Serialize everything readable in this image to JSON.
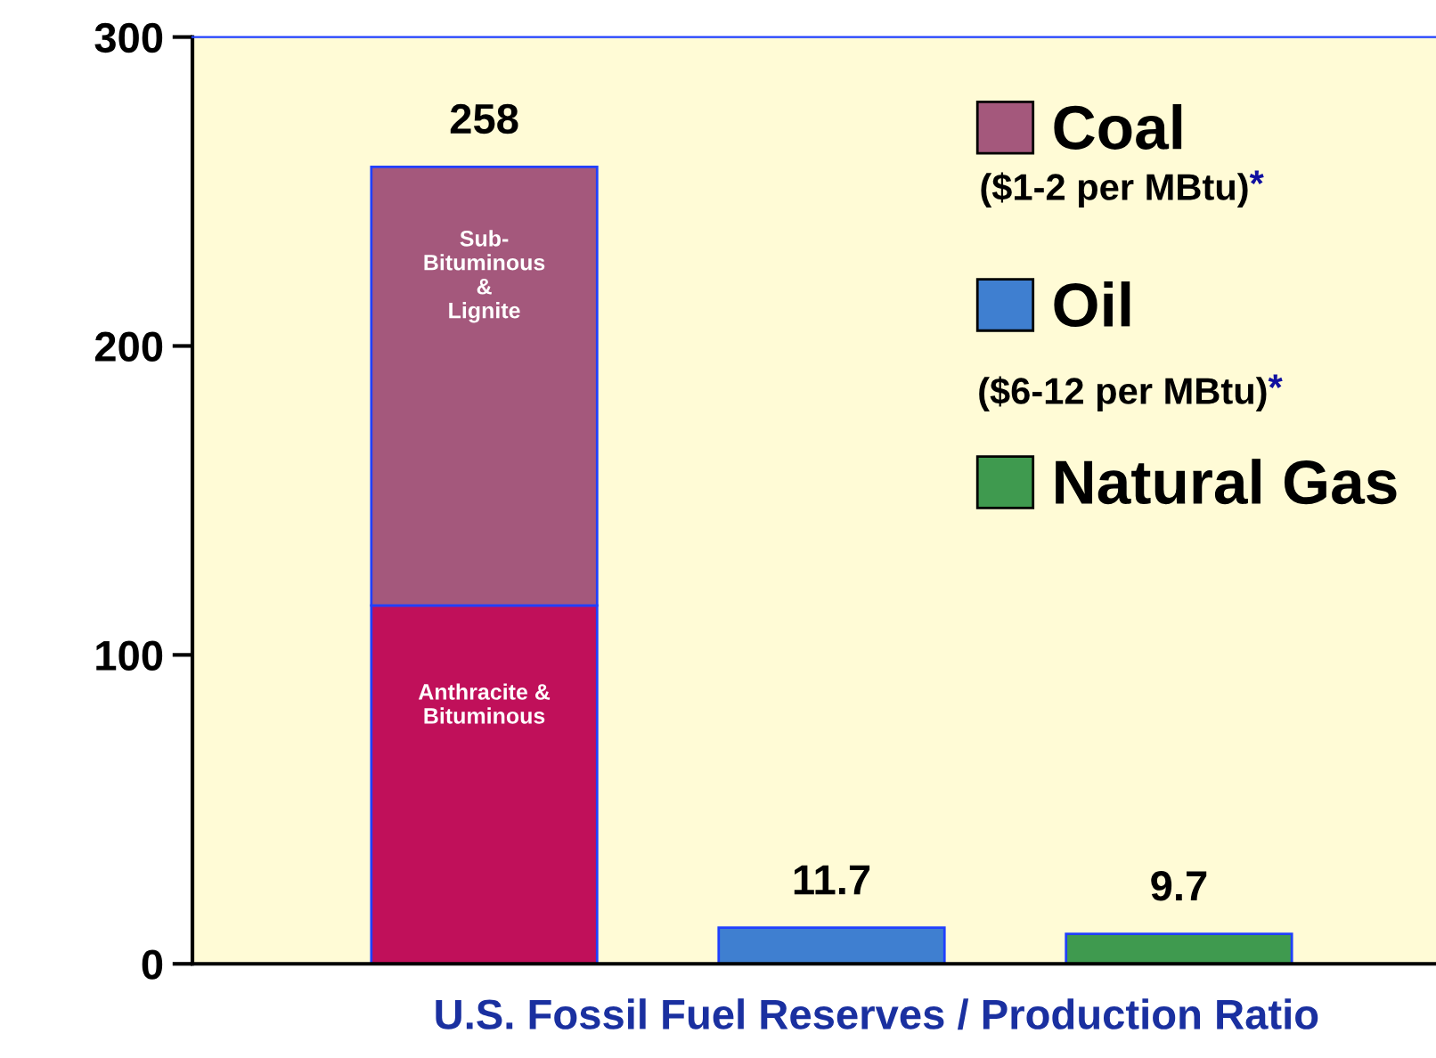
{
  "chart_data": {
    "type": "bar",
    "stacked": true,
    "xlabel": "U.S. Fossil Fuel Reserves / Production Ratio",
    "categories": [
      null,
      null,
      null
    ],
    "series": [
      {
        "name": "Anthracite & Bituminous",
        "color": "#c0105a",
        "values": [
          116,
          null,
          null
        ]
      },
      {
        "name": "Coal",
        "color": "#a4587c",
        "values": [
          142,
          null,
          null
        ]
      },
      {
        "name": "Oil",
        "color": "#3f7fd0",
        "values": [
          null,
          11.7,
          null
        ]
      },
      {
        "name": "Natural Gas",
        "color": "#3f9a4f",
        "values": [
          null,
          null,
          9.7
        ]
      }
    ],
    "totals": [
      "258",
      "11.7",
      "9.7"
    ],
    "annotations": [
      "Sub-Bituminous & Lignite",
      "($1-2 per MBtu)*",
      "($6-12 per MBtu)*"
    ],
    "ylim": [
      0,
      300
    ],
    "yticks": [
      0,
      100,
      200,
      300
    ],
    "grid": false,
    "legend": "top right"
  }
}
